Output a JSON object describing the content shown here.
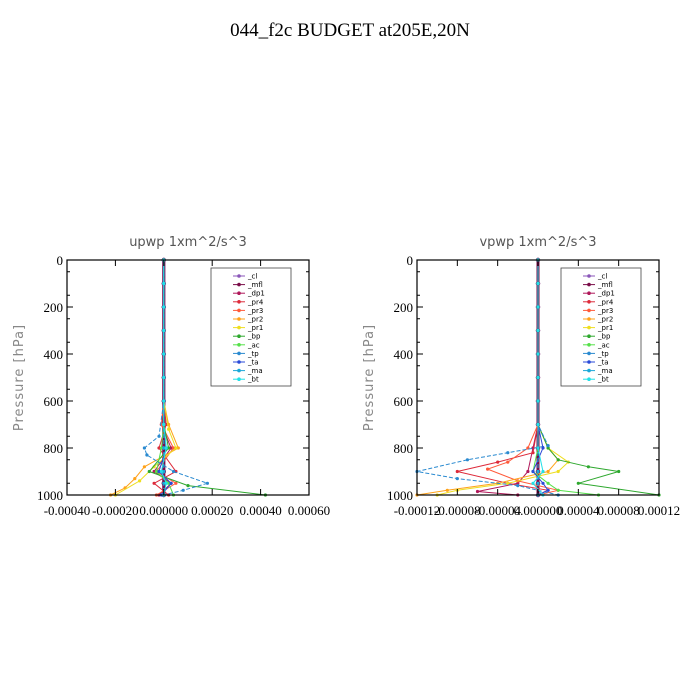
{
  "title": "044_f2c  BUDGET at205E,20N",
  "series_styles": [
    {
      "name": "_cl",
      "color": "#8a56b8"
    },
    {
      "name": "_mfl",
      "color": "#7a0d4a"
    },
    {
      "name": "_dp1",
      "color": "#b0185a"
    },
    {
      "name": "_pr4",
      "color": "#dd2a3a"
    },
    {
      "name": "_pr3",
      "color": "#ff5a3a"
    },
    {
      "name": "_pr2",
      "color": "#ffa21a"
    },
    {
      "name": "_pr1",
      "color": "#eede20"
    },
    {
      "name": "_bp",
      "color": "#2ea82e"
    },
    {
      "name": "_ac",
      "color": "#55e04a"
    },
    {
      "name": "_tp",
      "color": "#2a8ad0"
    },
    {
      "name": "_ta",
      "color": "#2a4ad8"
    },
    {
      "name": "_ma",
      "color": "#1aa8d8"
    },
    {
      "name": "_bt",
      "color": "#20e0e8"
    }
  ],
  "chart_data": [
    {
      "type": "line",
      "title": "upwp   1xm^2/s^3",
      "xlabel": "",
      "ylabel": "Pressure [hPa]",
      "xlim": [
        -0.0004,
        0.0006
      ],
      "ylim": [
        1000,
        0
      ],
      "xticks": [
        -0.0004,
        -0.0002,
        0.0,
        0.0002,
        0.0004,
        0.0006
      ],
      "xtick_labels": [
        "-0.00040",
        "-0.00020",
        "0.000000",
        "0.00020",
        "0.00040",
        "0.00060"
      ],
      "yticks": [
        0,
        200,
        400,
        600,
        800,
        1000
      ],
      "ytick_labels": [
        "0",
        "200",
        "400",
        "600",
        "800",
        "1000"
      ],
      "legend": [
        "_cl",
        "_mfl",
        "_dp1",
        "_pr4",
        "_pr3",
        "_pr2",
        "_pr1",
        "_bp",
        "_ac",
        "_tp",
        "_ta",
        "_ma",
        "_bt"
      ],
      "legend_position": "top-right",
      "series": [
        {
          "name": "_cl",
          "x": [
            0,
            0,
            0,
            0,
            0,
            0,
            0,
            0,
            0,
            0,
            0,
            0
          ],
          "y": [
            0,
            100,
            200,
            300,
            400,
            500,
            600,
            700,
            800,
            900,
            950,
            1000
          ]
        },
        {
          "name": "_mfl",
          "x": [
            0,
            0,
            0,
            0,
            0,
            0,
            0,
            0,
            0,
            0,
            0,
            0
          ],
          "y": [
            0,
            100,
            200,
            300,
            400,
            500,
            600,
            700,
            800,
            900,
            950,
            1000
          ]
        },
        {
          "name": "_dp1",
          "x": [
            0,
            0,
            0,
            0,
            0,
            0,
            0,
            -1e-05,
            3e-05,
            -4e-05,
            3e-05,
            -2e-05
          ],
          "y": [
            0,
            100,
            200,
            300,
            400,
            500,
            600,
            700,
            800,
            900,
            950,
            1000
          ]
        },
        {
          "name": "_pr4",
          "x": [
            0,
            0,
            0,
            0,
            0,
            0,
            0,
            1e-05,
            -2e-05,
            5e-05,
            -4e-05,
            2e-05
          ],
          "y": [
            0,
            100,
            200,
            300,
            400,
            500,
            600,
            700,
            800,
            900,
            950,
            1000
          ]
        },
        {
          "name": "_pr3",
          "x": [
            0,
            0,
            0,
            0,
            0,
            0,
            0,
            -1e-05,
            4e-05,
            -3e-05,
            5e-05,
            -3e-05
          ],
          "y": [
            0,
            100,
            200,
            300,
            400,
            500,
            600,
            700,
            800,
            900,
            950,
            1000
          ]
        },
        {
          "name": "_pr2",
          "x": [
            0,
            0,
            0,
            0,
            0,
            0,
            0,
            2e-05,
            6e-05,
            -8e-05,
            -0.00012,
            -0.00016,
            -0.00022
          ],
          "y": [
            0,
            100,
            200,
            300,
            400,
            500,
            600,
            700,
            800,
            880,
            930,
            970,
            1000
          ]
        },
        {
          "name": "_pr1",
          "x": [
            0,
            0,
            0,
            0,
            0,
            0,
            0,
            2e-05,
            5e-05,
            -4e-05,
            -0.0001,
            -0.0002
          ],
          "y": [
            0,
            100,
            200,
            300,
            400,
            500,
            600,
            720,
            800,
            880,
            940,
            1000
          ]
        },
        {
          "name": "_bp",
          "x": [
            0,
            0,
            0,
            0,
            0,
            0,
            0,
            0,
            2e-05,
            -6e-05,
            0.0001,
            0.00042
          ],
          "y": [
            0,
            100,
            200,
            300,
            400,
            500,
            600,
            700,
            800,
            900,
            960,
            1000
          ]
        },
        {
          "name": "_ac",
          "x": [
            0,
            0,
            0,
            0,
            0,
            0,
            0,
            0,
            -1e-05,
            -3e-05,
            2e-05,
            4e-05
          ],
          "y": [
            0,
            100,
            200,
            300,
            400,
            500,
            600,
            700,
            800,
            900,
            950,
            1000
          ]
        },
        {
          "name": "_tp",
          "x": [
            0,
            0,
            0,
            0,
            0,
            0,
            0,
            -2e-05,
            -8e-05,
            -7e-05,
            4e-05,
            0.00018,
            8e-05,
            0
          ],
          "y": [
            0,
            100,
            200,
            300,
            400,
            500,
            600,
            750,
            800,
            830,
            900,
            950,
            980,
            1000
          ]
        },
        {
          "name": "_ta",
          "x": [
            0,
            0,
            0,
            0,
            0,
            0,
            0,
            0,
            1e-05,
            -2e-05,
            3e-05,
            -1e-05
          ],
          "y": [
            0,
            100,
            200,
            300,
            400,
            500,
            600,
            700,
            800,
            900,
            950,
            1000
          ]
        },
        {
          "name": "_ma",
          "x": [
            0,
            0,
            0,
            0,
            0,
            0,
            0,
            0,
            0,
            0,
            0,
            0
          ],
          "y": [
            0,
            100,
            200,
            300,
            400,
            500,
            600,
            700,
            800,
            900,
            950,
            1000
          ]
        },
        {
          "name": "_bt",
          "x": [
            0,
            0,
            0,
            0,
            0,
            0,
            0,
            0,
            1e-05,
            -1e-05,
            1e-05,
            0
          ],
          "y": [
            0,
            100,
            200,
            300,
            400,
            500,
            600,
            700,
            800,
            900,
            950,
            1000
          ]
        }
      ]
    },
    {
      "type": "line",
      "title": "vpwp   1xm^2/s^3",
      "xlabel": "",
      "ylabel": "Pressure [hPa]",
      "xlim": [
        -0.00012,
        0.00012
      ],
      "ylim": [
        1000,
        0
      ],
      "xticks": [
        -0.00012,
        -8e-05,
        -4e-05,
        0.0,
        4e-05,
        8e-05,
        0.00012
      ],
      "xtick_labels": [
        "-0.00012",
        "-0.00008",
        "-0.00004",
        "0.000000",
        "0.00004",
        "0.00008",
        "0.00012"
      ],
      "yticks": [
        0,
        200,
        400,
        600,
        800,
        1000
      ],
      "ytick_labels": [
        "0",
        "200",
        "400",
        "600",
        "800",
        "1000"
      ],
      "legend": [
        "_cl",
        "_mfl",
        "_dp1",
        "_pr4",
        "_pr3",
        "_pr2",
        "_pr1",
        "_bp",
        "_ac",
        "_tp",
        "_ta",
        "_ma",
        "_bt"
      ],
      "legend_position": "top-right",
      "series": [
        {
          "name": "_cl",
          "x": [
            0,
            0,
            0,
            0,
            0,
            0,
            0,
            0,
            0,
            0,
            0,
            0
          ],
          "y": [
            0,
            100,
            200,
            300,
            400,
            500,
            600,
            700,
            800,
            900,
            950,
            1000
          ]
        },
        {
          "name": "_mfl",
          "x": [
            0,
            0,
            0,
            0,
            0,
            0,
            0,
            0,
            0,
            0,
            0,
            0
          ],
          "y": [
            0,
            100,
            200,
            300,
            400,
            500,
            600,
            700,
            800,
            900,
            950,
            1000
          ]
        },
        {
          "name": "_dp1",
          "x": [
            0,
            0,
            0,
            0,
            0,
            0,
            0,
            0,
            -5e-06,
            -1e-05,
            -2e-05,
            -6e-05,
            -2e-05
          ],
          "y": [
            0,
            100,
            200,
            300,
            400,
            500,
            600,
            700,
            800,
            900,
            950,
            985,
            1000
          ]
        },
        {
          "name": "_pr4",
          "x": [
            0,
            0,
            0,
            0,
            0,
            0,
            0,
            0,
            -5e-06,
            -4e-05,
            -8e-05,
            -3e-05,
            1e-05,
            0
          ],
          "y": [
            0,
            100,
            200,
            300,
            400,
            500,
            600,
            700,
            820,
            860,
            900,
            950,
            980,
            1000
          ]
        },
        {
          "name": "_pr3",
          "x": [
            0,
            0,
            0,
            0,
            0,
            0,
            0,
            0,
            -1e-05,
            -3e-05,
            -5e-05,
            -2e-05,
            2e-05,
            0
          ],
          "y": [
            0,
            100,
            200,
            300,
            400,
            500,
            600,
            700,
            800,
            860,
            890,
            940,
            980,
            1000
          ]
        },
        {
          "name": "_pr2",
          "x": [
            0,
            0,
            0,
            0,
            0,
            0,
            0,
            0,
            1e-05,
            2e-05,
            1e-05,
            -4e-05,
            -9e-05,
            -0.00012
          ],
          "y": [
            0,
            100,
            200,
            300,
            400,
            500,
            600,
            700,
            800,
            850,
            900,
            950,
            980,
            1000
          ]
        },
        {
          "name": "_pr1",
          "x": [
            0,
            0,
            0,
            0,
            0,
            0,
            0,
            0,
            1e-05,
            3e-05,
            2e-05,
            -3e-05,
            -8e-05,
            -0.0001
          ],
          "y": [
            0,
            100,
            200,
            300,
            400,
            500,
            600,
            700,
            800,
            860,
            900,
            950,
            980,
            1000
          ]
        },
        {
          "name": "_bp",
          "x": [
            0,
            0,
            0,
            0,
            0,
            0,
            0,
            0,
            1e-05,
            2e-05,
            5e-05,
            8e-05,
            4e-05,
            0.00012
          ],
          "y": [
            0,
            100,
            200,
            300,
            400,
            500,
            600,
            700,
            800,
            850,
            880,
            900,
            950,
            1000
          ]
        },
        {
          "name": "_ac",
          "x": [
            0,
            0,
            0,
            0,
            0,
            0,
            0,
            0,
            0,
            -5e-06,
            1e-05,
            2e-05,
            6e-05
          ],
          "y": [
            0,
            100,
            200,
            300,
            400,
            500,
            600,
            700,
            800,
            900,
            950,
            980,
            1000
          ]
        },
        {
          "name": "_tp",
          "x": [
            0,
            0,
            0,
            0,
            0,
            0,
            0,
            0,
            1e-05,
            -3e-05,
            -7e-05,
            -0.00012,
            -8e-05,
            -2e-05,
            2e-05
          ],
          "y": [
            0,
            100,
            200,
            300,
            400,
            500,
            600,
            700,
            790,
            820,
            850,
            900,
            930,
            960,
            1000
          ]
        },
        {
          "name": "_ta",
          "x": [
            0,
            0,
            0,
            0,
            0,
            0,
            0,
            0,
            5e-06,
            -5e-06,
            5e-06,
            1e-05,
            0
          ],
          "y": [
            0,
            100,
            200,
            300,
            400,
            500,
            600,
            700,
            800,
            900,
            950,
            980,
            1000
          ]
        },
        {
          "name": "_ma",
          "x": [
            0,
            0,
            0,
            0,
            0,
            0,
            0,
            0,
            0,
            0,
            0,
            0
          ],
          "y": [
            0,
            100,
            200,
            300,
            400,
            500,
            600,
            700,
            800,
            900,
            950,
            1000
          ]
        },
        {
          "name": "_bt",
          "x": [
            0,
            0,
            0,
            0,
            0,
            0,
            0,
            0,
            0,
            5e-06,
            -5e-06,
            5e-06
          ],
          "y": [
            0,
            100,
            200,
            300,
            400,
            500,
            600,
            700,
            800,
            900,
            950,
            1000
          ]
        }
      ]
    }
  ]
}
